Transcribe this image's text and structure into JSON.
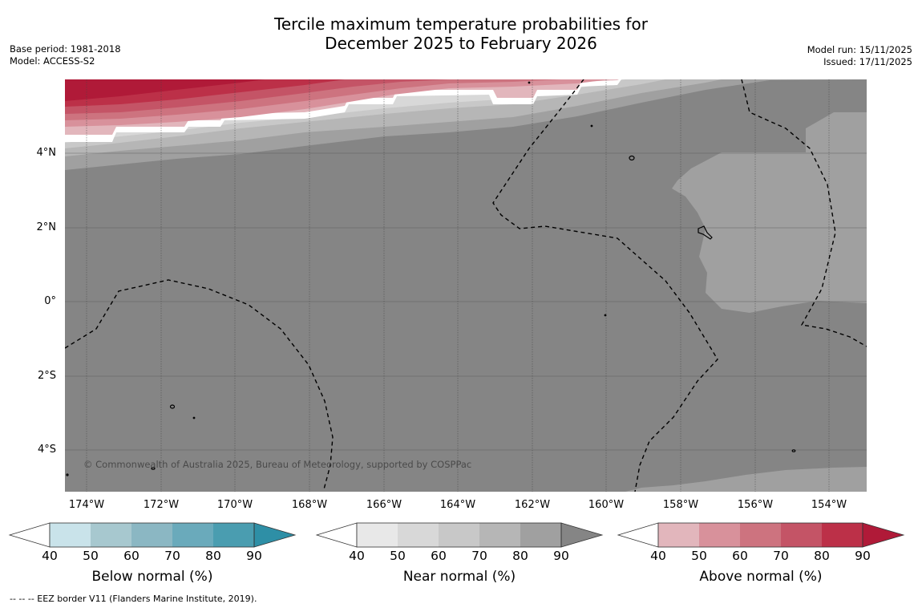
{
  "title": {
    "line1": "Tercile maximum temperature probabilities for",
    "line2": "December 2025 to February 2026"
  },
  "info_left": {
    "base_period": "Base period: 1981-2018",
    "model": "Model: ACCESS-S2"
  },
  "info_right": {
    "model_run": "Model run: 15/11/2025",
    "issued": "Issued: 17/11/2025"
  },
  "map": {
    "longitude_ticks": [
      "174°W",
      "172°W",
      "170°W",
      "168°W",
      "166°W",
      "164°W",
      "162°W",
      "160°W",
      "158°W",
      "156°W",
      "154°W"
    ],
    "latitude_ticks": [
      "4°N",
      "2°N",
      "0°",
      "2°S",
      "4°S"
    ],
    "copyright": "© Commonwealth of Australia 2025, Bureau of Meteorology, supported by COSPPac"
  },
  "legend": [
    {
      "label": "Below normal (%)",
      "ticks": [
        "40",
        "50",
        "60",
        "70",
        "80",
        "90"
      ],
      "colors": [
        "#ffffff",
        "#c9e3ea",
        "#a7c8cf",
        "#8bb7c3",
        "#6aaabb",
        "#4a9db0",
        "#2e8fa6"
      ]
    },
    {
      "label": "Near normal (%)",
      "ticks": [
        "40",
        "50",
        "60",
        "70",
        "80",
        "90"
      ],
      "colors": [
        "#ffffff",
        "#e8e8e8",
        "#d8d8d8",
        "#c8c8c8",
        "#b6b6b6",
        "#a0a0a0",
        "#858585"
      ]
    },
    {
      "label": "Above normal (%)",
      "ticks": [
        "40",
        "50",
        "60",
        "70",
        "80",
        "90"
      ],
      "colors": [
        "#ffffff",
        "#e2b6bc",
        "#d8919b",
        "#cd737f",
        "#c45466",
        "#bc3048",
        "#b01a38"
      ]
    }
  ],
  "footer": "--  --  -- EEZ border V11 (Flanders Marine Institute, 2019)."
}
